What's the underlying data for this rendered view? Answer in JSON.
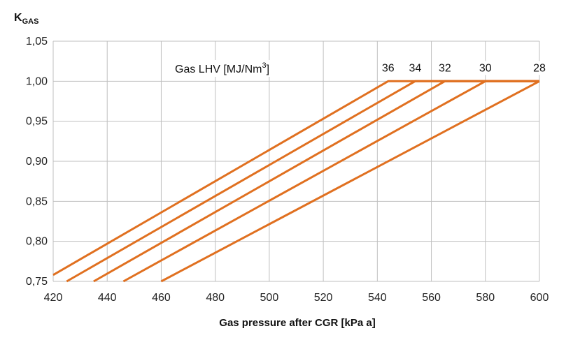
{
  "chart_data": {
    "type": "line",
    "title": "",
    "xlabel": "Gas pressure after CGR [kPa a]",
    "ylabel_main": "K",
    "ylabel_sub": "GAS",
    "xlim": [
      420,
      600
    ],
    "ylim": [
      0.75,
      1.05
    ],
    "xticks": [
      420,
      440,
      460,
      480,
      500,
      520,
      540,
      560,
      580,
      600
    ],
    "yticks": [
      "0,75",
      "0,80",
      "0,85",
      "0,90",
      "0,95",
      "1,00",
      "1,05"
    ],
    "yticks_values": [
      0.75,
      0.8,
      0.85,
      0.9,
      0.95,
      1.0,
      1.05
    ],
    "grid": true,
    "annotation": {
      "text_prefix": "Gas LHV [MJ/Nm",
      "text_sup": "3",
      "text_suffix": "]"
    },
    "series": [
      {
        "name": "36",
        "points": [
          [
            420,
            0.758
          ],
          [
            544,
            1.0
          ],
          [
            600,
            1.0
          ]
        ]
      },
      {
        "name": "34",
        "points": [
          [
            425,
            0.75
          ],
          [
            554,
            1.0
          ],
          [
            600,
            1.0
          ]
        ]
      },
      {
        "name": "32",
        "points": [
          [
            435,
            0.75
          ],
          [
            565,
            1.0
          ],
          [
            600,
            1.0
          ]
        ]
      },
      {
        "name": "30",
        "points": [
          [
            446,
            0.75
          ],
          [
            580,
            1.0
          ],
          [
            600,
            1.0
          ]
        ]
      },
      {
        "name": "28",
        "points": [
          [
            460,
            0.75
          ],
          [
            600,
            1.0
          ]
        ]
      }
    ],
    "line_color": "#E07020",
    "grid_color": "#BFBFBF"
  }
}
